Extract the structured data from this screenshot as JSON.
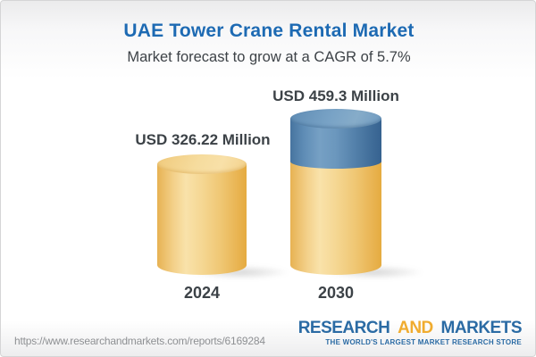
{
  "header": {
    "title": "UAE Tower Crane Rental Market",
    "subtitle": "Market forecast to grow at a CAGR of 5.7%"
  },
  "chart_data": {
    "type": "bar",
    "variant": "3d-cylinder-comparison",
    "categories": [
      "2024",
      "2030"
    ],
    "values": [
      326.22,
      459.3
    ],
    "unit": "USD Million",
    "labels": [
      "USD 326.22 Million",
      "USD 459.3 Million"
    ],
    "cagr_pct": 5.7,
    "title": "UAE Tower Crane Rental Market",
    "xlabel": "",
    "ylabel": "",
    "grid": false,
    "legend": false,
    "bar_base_color": "#F2CD83",
    "bar_growth_segment_color": "#5E8DB6",
    "growth_segment_note": "blue top segment on 2030 bar represents growth above 2024 value"
  },
  "colors": {
    "title_blue": "#1D6AB3",
    "text_dark": "#3C4247",
    "yellow_body": "#F2CD83",
    "blue_body": "#5E8DB6",
    "logo_blue": "#2B6BA4",
    "logo_orange": "#F0AC2F",
    "url_gray": "#8E9093"
  },
  "footer": {
    "url": "https://www.researchandmarkets.com/reports/6169284",
    "logo": {
      "research": "RESEARCH",
      "and": "AND",
      "markets": "MARKETS",
      "tagline": "THE WORLD'S LARGEST MARKET RESEARCH STORE"
    }
  }
}
